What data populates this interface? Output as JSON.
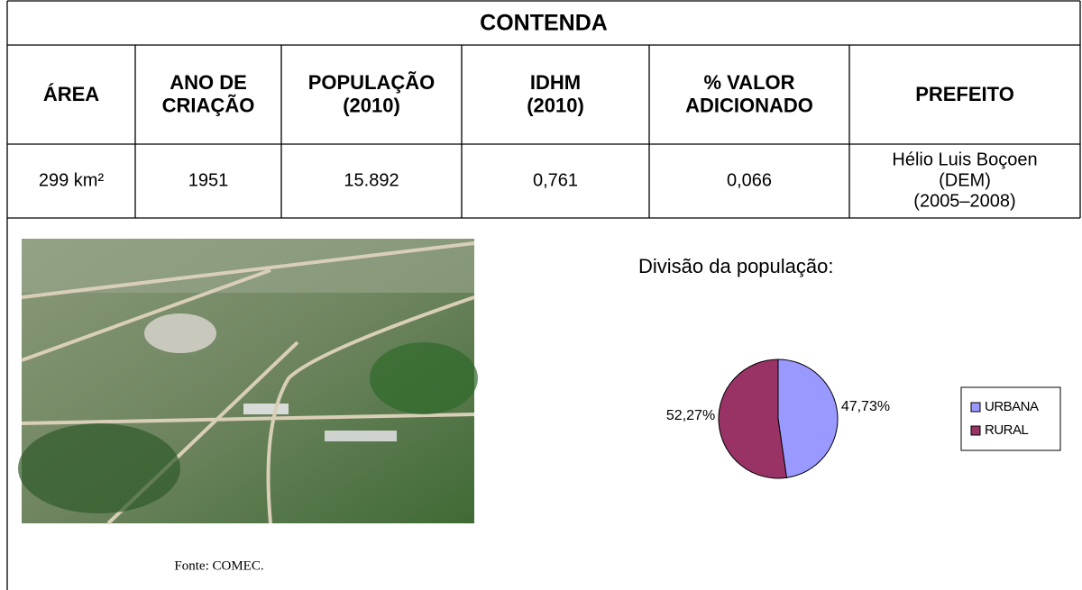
{
  "header": {
    "title": "CONTENDA"
  },
  "table": {
    "columns": [
      [
        "ÁREA"
      ],
      [
        "ANO DE",
        "CRIAÇÃO"
      ],
      [
        "POPULAÇÃO",
        "(2010)"
      ],
      [
        "IDHM",
        "(2010)"
      ],
      [
        "% VALOR",
        "ADICIONADO"
      ],
      [
        "PREFEITO"
      ]
    ],
    "rows": [
      [
        [
          "299 km²"
        ],
        [
          "1951"
        ],
        [
          "15.892"
        ],
        [
          "0,761"
        ],
        [
          "0,066"
        ],
        [
          "Hélio Luis Boçoen",
          "(DEM)",
          "(2005–2008)"
        ]
      ]
    ]
  },
  "image": {
    "caption": "Fonte: COMEC."
  },
  "chart_data": {
    "type": "pie",
    "title": "Divisão da população:",
    "categories": [
      "URBANA",
      "RURAL"
    ],
    "values": [
      47.73,
      52.27
    ],
    "value_labels": [
      "47,73%",
      "52,27%"
    ],
    "colors": [
      "#9999ff",
      "#993366"
    ],
    "legend": "right"
  }
}
